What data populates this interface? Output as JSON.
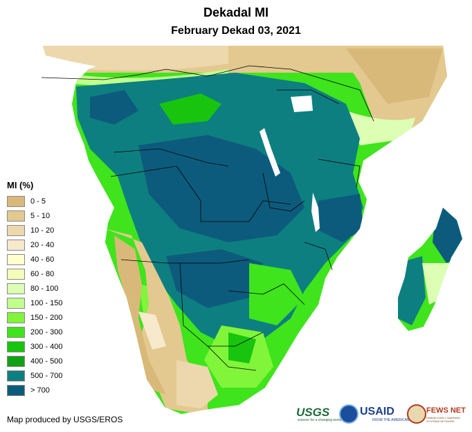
{
  "title": "Dekadal MI",
  "subtitle": "February Dekad 03, 2021",
  "legend": {
    "title": "MI (%)",
    "items": [
      {
        "label": "0 - 5",
        "color": "#d9b97a"
      },
      {
        "label": "5 - 10",
        "color": "#e3c98f"
      },
      {
        "label": "10 - 20",
        "color": "#edd8ad"
      },
      {
        "label": "20 - 40",
        "color": "#f6e9cc"
      },
      {
        "label": "40 - 60",
        "color": "#ffffd0"
      },
      {
        "label": "60 - 80",
        "color": "#f3ffb8"
      },
      {
        "label": "80 - 100",
        "color": "#dcffb4"
      },
      {
        "label": "100 - 150",
        "color": "#bfff8e"
      },
      {
        "label": "150 - 200",
        "color": "#80f53a"
      },
      {
        "label": "200 - 300",
        "color": "#3fe41c"
      },
      {
        "label": "300 - 400",
        "color": "#18c40e"
      },
      {
        "label": "400 - 500",
        "color": "#10a214"
      },
      {
        "label": "500 - 700",
        "color": "#0e7f80"
      },
      {
        "label": "> 700",
        "color": "#0d5b7c"
      }
    ]
  },
  "credit": "Map produced by USGS/EROS",
  "logos": {
    "usgs": "USGS",
    "usgs_tagline": "science for a changing world",
    "usaid": "USAID",
    "usaid_tagline": "FROM THE AMERICAN PEOPLE",
    "fews": "FEWS NET",
    "fews_tagline": "FAMINE EARLY WARNING SYSTEMS NETWORK"
  },
  "map_icons": [
    "noaa-logo-icon",
    "fews-net-logo-icon"
  ]
}
